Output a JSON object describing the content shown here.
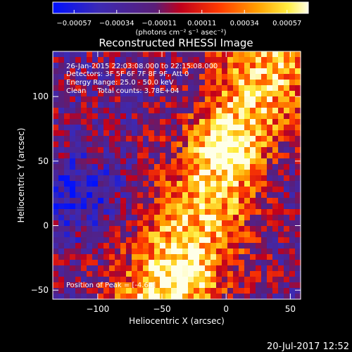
{
  "chart_data": {
    "type": "heatmap",
    "title": "Reconstructed RHESSI Image",
    "xlabel": "Heliocentric X (arcsec)",
    "ylabel": "Heliocentric Y (arcsec)",
    "xlim": [
      -135,
      58
    ],
    "ylim": [
      -57,
      135
    ],
    "xticks": [
      {
        "value": -100,
        "label": "−100"
      },
      {
        "value": -50,
        "label": "−50"
      },
      {
        "value": 0,
        "label": "0"
      },
      {
        "value": 50,
        "label": "50"
      }
    ],
    "yticks": [
      {
        "value": -50,
        "label": "−50"
      },
      {
        "value": 0,
        "label": "0"
      },
      {
        "value": 50,
        "label": "50"
      },
      {
        "value": 100,
        "label": "100"
      }
    ],
    "colorbar": {
      "range": [
        -0.00057,
        0.00057
      ],
      "tick_labels": [
        "−0.00057",
        "−0.00034",
        "−0.00011",
        "0.00011",
        "0.00034",
        "0.00057"
      ],
      "unit_label": "(photons cm⁻² s⁻¹ asec⁻²)",
      "colormap": "blue-purple-red-orange-yellow-white"
    },
    "annotations": [
      "26-Jan-2015 22:03:08.000 to 22:15:08.000",
      "Detectors: 3F 5F 6F 7F 8F 9F, Att 0",
      "Energy Range: 25.0 - 50.0 keV",
      "Clean     Total counts: 3.78E+04",
      "Position of Peak = [-4.64]"
    ]
  },
  "footer_timestamp": "20-Jul-2017 12:52"
}
